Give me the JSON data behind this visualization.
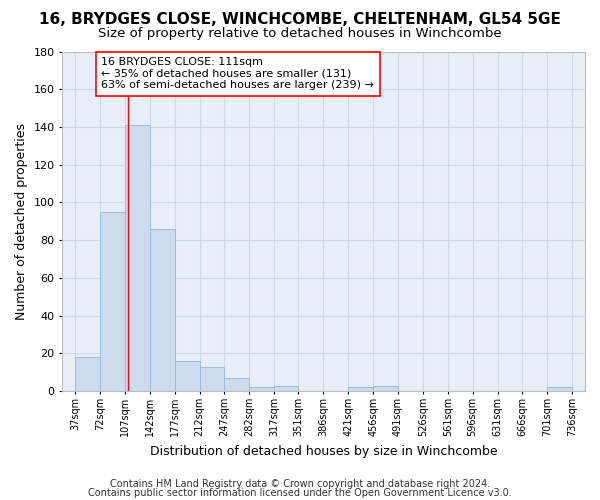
{
  "title1": "16, BRYDGES CLOSE, WINCHCOMBE, CHELTENHAM, GL54 5GE",
  "title2": "Size of property relative to detached houses in Winchcombe",
  "xlabel": "Distribution of detached houses by size in Winchcombe",
  "ylabel": "Number of detached properties",
  "footnote1": "Contains HM Land Registry data © Crown copyright and database right 2024.",
  "footnote2": "Contains public sector information licensed under the Open Government Licence v3.0.",
  "bin_edges": [
    37,
    72,
    107,
    142,
    177,
    212,
    247,
    282,
    317,
    351,
    386,
    421,
    456,
    491,
    526,
    561,
    596,
    631,
    666,
    701,
    736
  ],
  "counts": [
    18,
    95,
    141,
    86,
    16,
    13,
    7,
    2,
    3,
    0,
    0,
    2,
    3,
    0,
    0,
    0,
    0,
    0,
    0,
    2
  ],
  "bar_color": "#ccdcee",
  "bar_edge_color": "#99bbdd",
  "red_line_x": 111,
  "annotation_line1": "16 BRYDGES CLOSE: 111sqm",
  "annotation_line2": "← 35% of detached houses are smaller (131)",
  "annotation_line3": "63% of semi-detached houses are larger (239) →",
  "ylim": [
    0,
    180
  ],
  "xlim_left": 19,
  "xlim_right": 754,
  "background_color": "#ffffff",
  "plot_bg_color": "#e8eef8",
  "grid_color": "#d0d8e8",
  "title1_fontsize": 11,
  "title2_fontsize": 9.5,
  "ylabel_fontsize": 9,
  "xlabel_fontsize": 9,
  "footnote_fontsize": 7
}
